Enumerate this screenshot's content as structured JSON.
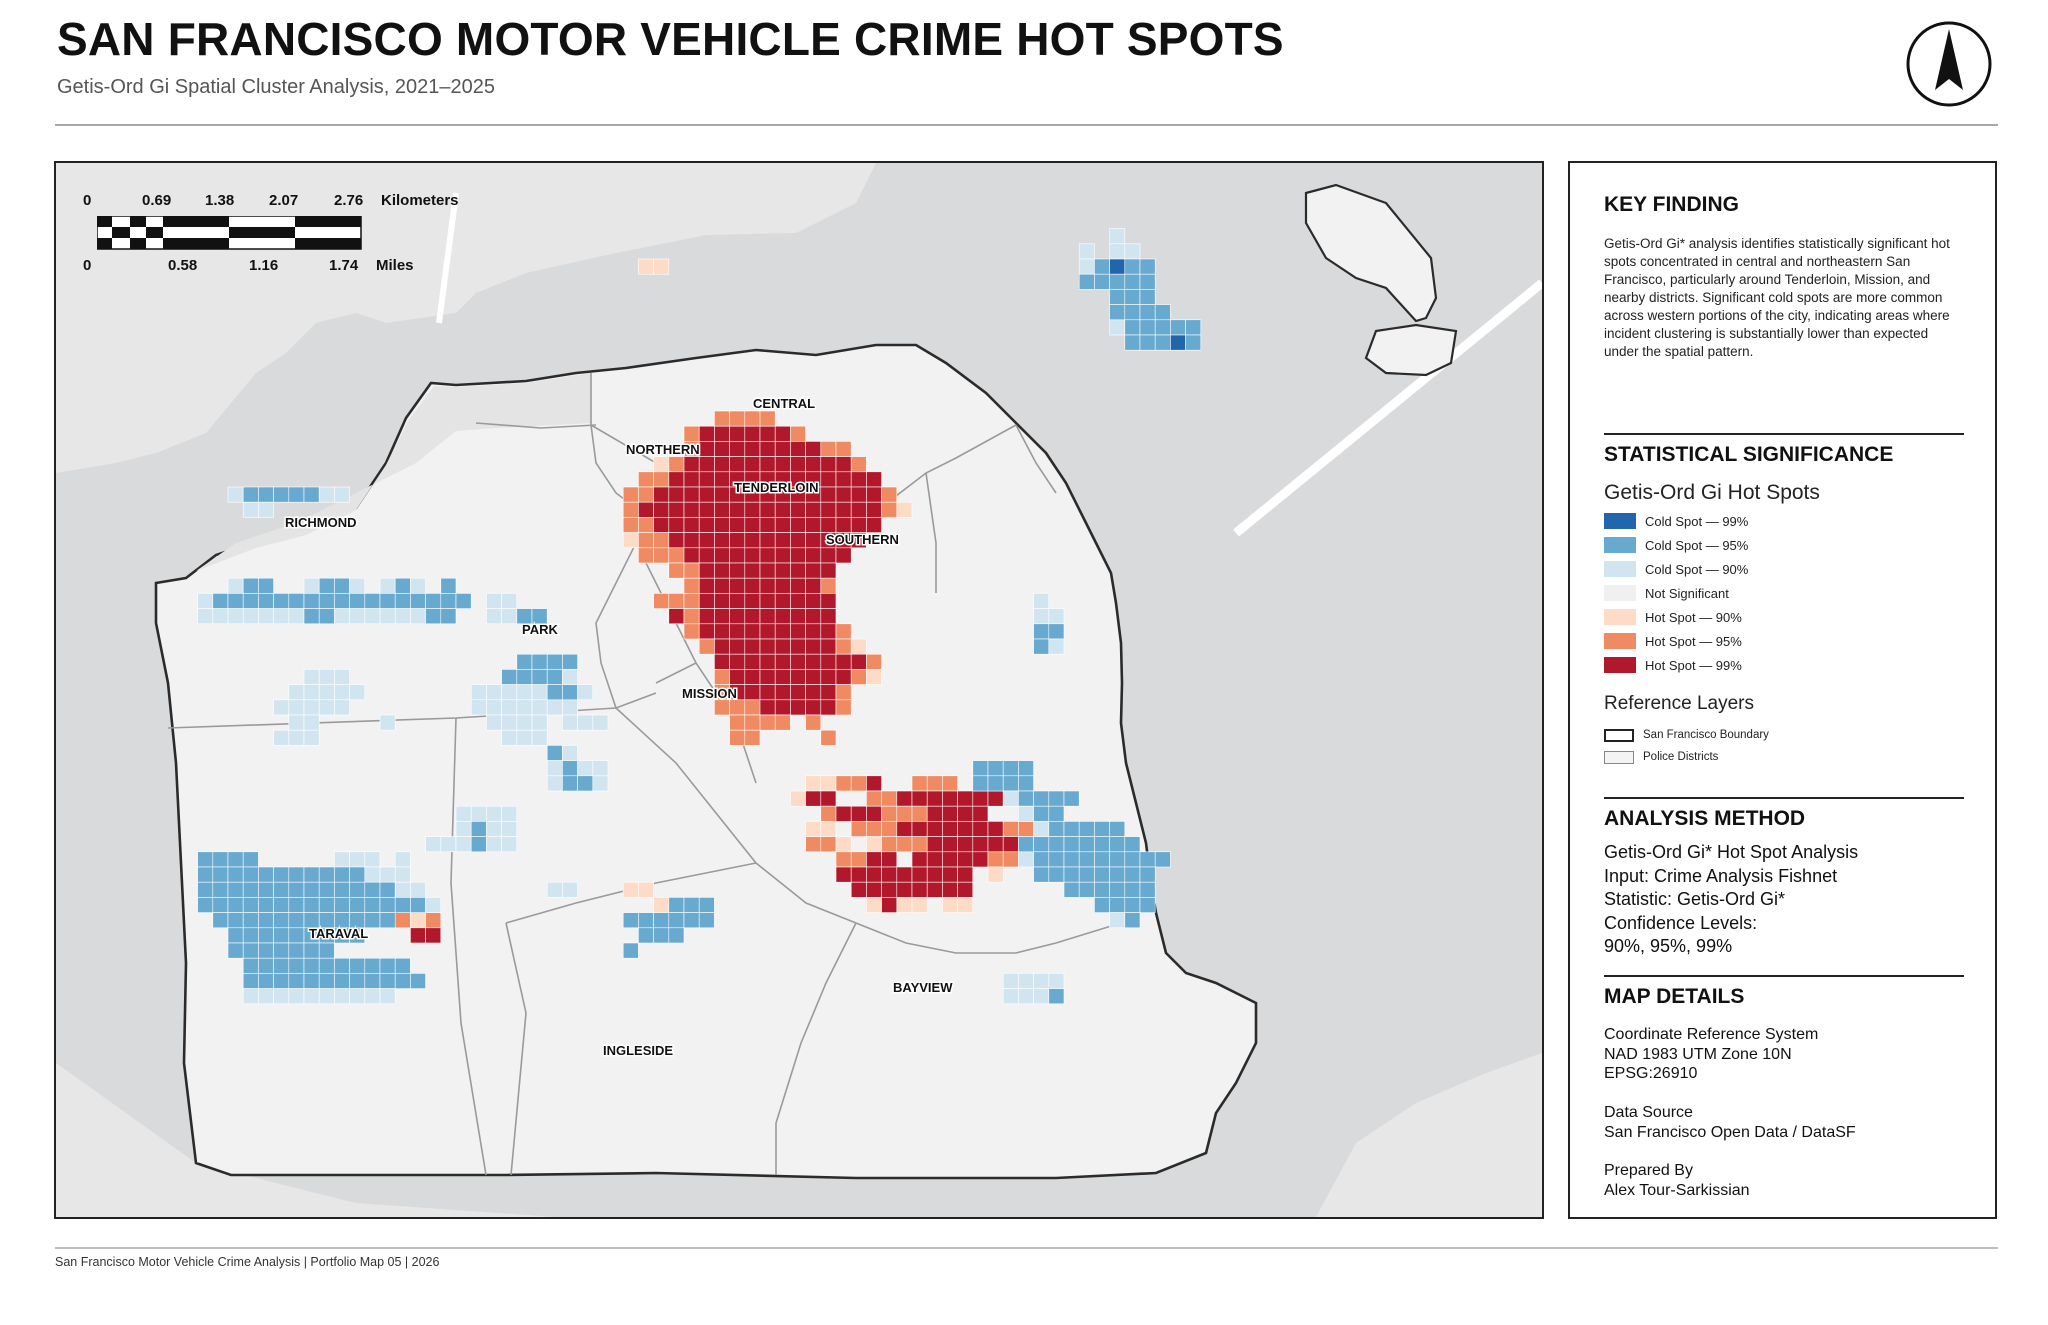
{
  "title": "SAN FRANCISCO MOTOR VEHICLE CRIME HOT SPOTS",
  "subtitle": "Getis-Ord Gi Spatial Cluster Analysis, 2021–2025",
  "north_arrow_icon": "north-arrow-icon",
  "scale_bar": {
    "km_ticks": [
      "0",
      "0.69",
      "1.38",
      "2.07",
      "2.76"
    ],
    "km_unit": "Kilometers",
    "mi_ticks": [
      "0",
      "0.58",
      "1.16",
      "1.74"
    ],
    "mi_unit": "Miles"
  },
  "map": {
    "districts": [
      {
        "key": "central",
        "name": "CENTRAL"
      },
      {
        "key": "northern",
        "name": "NORTHERN"
      },
      {
        "key": "tenderloin",
        "name": "TENDERLOIN"
      },
      {
        "key": "richmond",
        "name": "RICHMOND"
      },
      {
        "key": "southern",
        "name": "SOUTHERN"
      },
      {
        "key": "park",
        "name": "PARK"
      },
      {
        "key": "mission",
        "name": "MISSION"
      },
      {
        "key": "taraval",
        "name": "TARAVAL"
      },
      {
        "key": "bayview",
        "name": "BAYVIEW"
      },
      {
        "key": "ingleside",
        "name": "INGLESIDE"
      }
    ],
    "colors": {
      "water": "#d9dadb",
      "land_outside": "#e6e7e6",
      "city_land": "#f2f2f2",
      "boundary": "#2b2b2b",
      "district_line": "#9a9a9a"
    }
  },
  "panel": {
    "key_finding": {
      "heading": "KEY FINDING",
      "text": "Getis-Ord Gi* analysis identifies statistically significant hot spots concentrated in central and northeastern San Francisco, particularly around Tenderloin, Mission, and nearby districts. Significant cold spots are more common across western portions of the city, indicating areas where incident clustering is substantially lower than expected under the spatial pattern."
    },
    "significance": {
      "heading": "STATISTICAL SIGNIFICANCE",
      "layer_title": "Getis-Ord Gi Hot Spots",
      "classes": [
        {
          "label": "Cold Spot — 99%",
          "color": "#2166ac"
        },
        {
          "label": "Cold Spot — 95%",
          "color": "#67a9cf"
        },
        {
          "label": "Cold Spot — 90%",
          "color": "#d1e5f0"
        },
        {
          "label": "Not Significant",
          "color": "#f0f0f0"
        },
        {
          "label": "Hot Spot — 90%",
          "color": "#fddbc7"
        },
        {
          "label": "Hot Spot — 95%",
          "color": "#ef8a62"
        },
        {
          "label": "Hot Spot — 99%",
          "color": "#b2182b"
        }
      ],
      "reference_title": "Reference Layers",
      "reference_layers": [
        {
          "label": "San Francisco Boundary"
        },
        {
          "label": "Police Districts"
        }
      ]
    },
    "method": {
      "heading": "ANALYSIS METHOD",
      "lines": [
        "Getis-Ord Gi* Hot Spot Analysis",
        "Input: Crime Analysis Fishnet",
        "Statistic: Getis-Ord Gi*",
        "Confidence Levels:",
        "90%, 95%, 99%"
      ]
    },
    "details": {
      "heading": "MAP DETAILS",
      "crs_lines": [
        "Coordinate Reference System",
        "NAD 1983 UTM Zone 10N",
        "EPSG:26910"
      ],
      "source_lines": [
        "Data Source",
        "San Francisco Open Data / DataSF"
      ],
      "prepared_lines": [
        "Prepared By",
        "Alex Tour-Sarkissian"
      ]
    }
  },
  "footer": "San Francisco Motor Vehicle Crime Analysis | Portfolio Map 05 | 2026"
}
